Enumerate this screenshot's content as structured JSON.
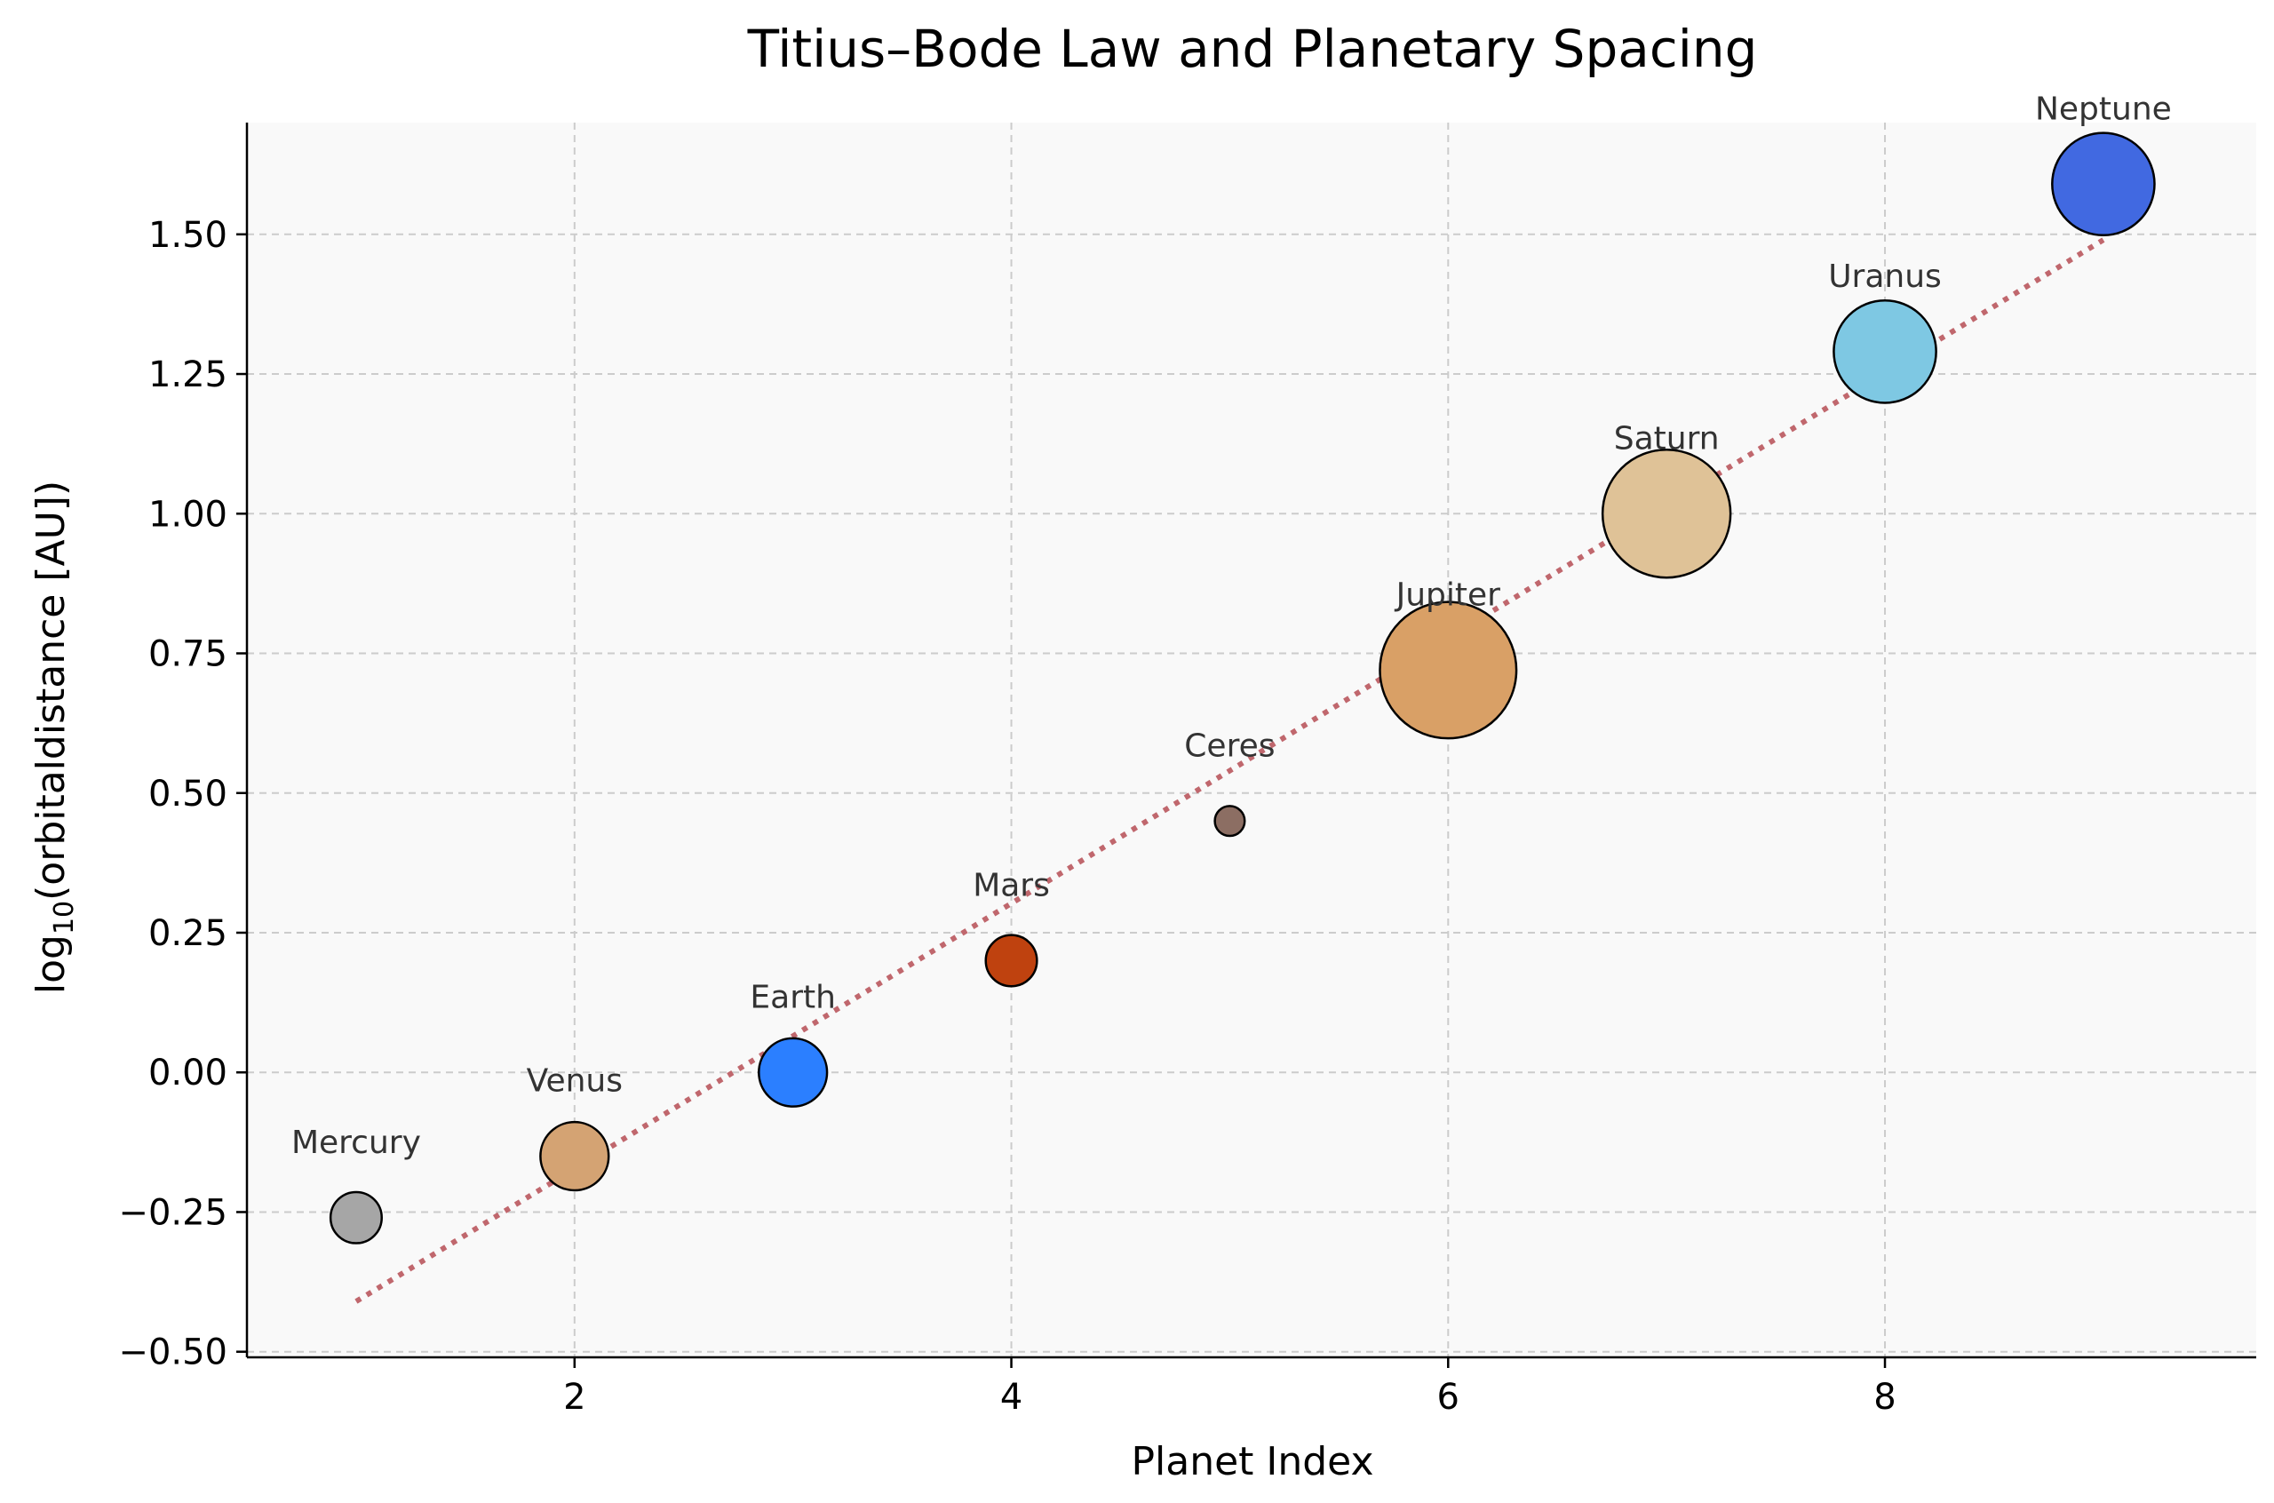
{
  "chart_data": {
    "type": "scatter",
    "title": "Titius–Bode Law and Planetary Spacing",
    "xlabel": "Planet Index",
    "ylabel_prefix": "log",
    "ylabel_sub": "10",
    "ylabel_rest": "(orbitaldistance [AU])",
    "xlim": [
      0.5,
      9.7
    ],
    "ylim": [
      -0.51,
      1.7
    ],
    "xticks": [
      2,
      4,
      6,
      8
    ],
    "xtick_labels": [
      "2",
      "4",
      "6",
      "8"
    ],
    "yticks": [
      -0.5,
      -0.25,
      0.0,
      0.25,
      0.5,
      0.75,
      1.0,
      1.25,
      1.5
    ],
    "ytick_labels": [
      "−0.50",
      "−0.25",
      "0.00",
      "0.25",
      "0.50",
      "0.75",
      "1.00",
      "1.25",
      "1.50"
    ],
    "grid": true,
    "trend_line": {
      "x": [
        1,
        9
      ],
      "y": [
        -0.41,
        1.49
      ],
      "style": "dotted",
      "color": "#c0676d"
    },
    "points": [
      {
        "label": "Mercury",
        "x": 1,
        "y": -0.26,
        "size": 0.6,
        "color": "#a6a6a6"
      },
      {
        "label": "Venus",
        "x": 2,
        "y": -0.15,
        "size": 0.8,
        "color": "#d4a373"
      },
      {
        "label": "Earth",
        "x": 3,
        "y": 0.0,
        "size": 0.8,
        "color": "#2b7fff"
      },
      {
        "label": "Mars",
        "x": 4,
        "y": 0.2,
        "size": 0.6,
        "color": "#bf420f"
      },
      {
        "label": "Ceres",
        "x": 5,
        "y": 0.45,
        "size": 0.35,
        "color": "#8c6e63"
      },
      {
        "label": "Jupiter",
        "x": 6,
        "y": 0.72,
        "size": 1.6,
        "color": "#d9a066"
      },
      {
        "label": "Saturn",
        "x": 7,
        "y": 1.0,
        "size": 1.5,
        "color": "#dfc297"
      },
      {
        "label": "Uranus",
        "x": 8,
        "y": 1.29,
        "size": 1.2,
        "color": "#7ec8e3"
      },
      {
        "label": "Neptune",
        "x": 9,
        "y": 1.59,
        "size": 1.2,
        "color": "#4169e1"
      }
    ]
  }
}
